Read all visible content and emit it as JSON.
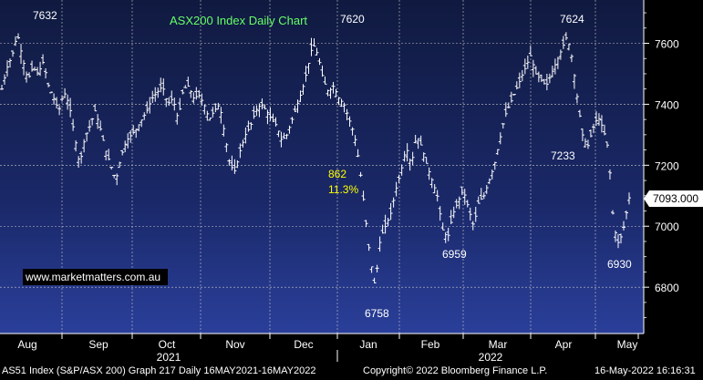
{
  "chart_data": {
    "type": "ohlc",
    "title": "ASX200 Index Daily Chart",
    "watermark": "www.marketmatters.com.au",
    "last_price_label": "7093.000",
    "ylim": [
      6660,
      7730
    ],
    "y_ticks": [
      6800,
      7000,
      7200,
      7400,
      7600
    ],
    "x_months": [
      "Aug",
      "Sep",
      "Oct",
      "Nov",
      "Dec",
      "Jan",
      "Feb",
      "Mar",
      "Apr",
      "May"
    ],
    "x_years": [
      "2021",
      "2022"
    ],
    "annotations": [
      {
        "text": "7632",
        "color": "#ffffff"
      },
      {
        "text": "7620",
        "color": "#ffffff"
      },
      {
        "text": "7624",
        "color": "#ffffff"
      },
      {
        "text": "862",
        "color": "#ffff00"
      },
      {
        "text": "11.3%",
        "color": "#ffff00"
      },
      {
        "text": "7233",
        "color": "#ffffff"
      },
      {
        "text": "6959",
        "color": "#ffffff"
      },
      {
        "text": "6930",
        "color": "#ffffff"
      },
      {
        "text": "6758",
        "color": "#ffffff"
      }
    ],
    "key_levels": [
      {
        "label": "7632",
        "value": 7632
      },
      {
        "label": "7620",
        "value": 7620
      },
      {
        "label": "7624",
        "value": 7624
      },
      {
        "label": "7233",
        "value": 7233
      },
      {
        "label": "6959",
        "value": 6959
      },
      {
        "label": "6930",
        "value": 6930
      },
      {
        "label": "6758",
        "value": 6758
      }
    ],
    "close_path": [
      7450,
      7520,
      7560,
      7632,
      7550,
      7480,
      7520,
      7500,
      7540,
      7460,
      7420,
      7380,
      7440,
      7400,
      7300,
      7200,
      7290,
      7330,
      7380,
      7320,
      7250,
      7200,
      7150,
      7230,
      7280,
      7300,
      7320,
      7350,
      7380,
      7420,
      7440,
      7460,
      7400,
      7420,
      7350,
      7450,
      7460,
      7420,
      7430,
      7400,
      7350,
      7380,
      7400,
      7300,
      7200,
      7180,
      7250,
      7300,
      7330,
      7380,
      7400,
      7380,
      7350,
      7330,
      7280,
      7300,
      7350,
      7400,
      7450,
      7520,
      7600,
      7560,
      7480,
      7440,
      7460,
      7420,
      7400,
      7350,
      7300,
      7200,
      7050,
      6900,
      6800,
      6960,
      7000,
      7040,
      7120,
      7180,
      7260,
      7200,
      7300,
      7260,
      7200,
      7150,
      7100,
      6990,
      6960,
      7040,
      7080,
      7120,
      7060,
      7000,
      7080,
      7100,
      7150,
      7200,
      7280,
      7360,
      7400,
      7440,
      7480,
      7520,
      7560,
      7500,
      7480,
      7460,
      7500,
      7540,
      7580,
      7624,
      7550,
      7420,
      7300,
      7260,
      7320,
      7360,
      7320,
      7250,
      7000,
      6940,
      7000,
      7093
    ],
    "footer": {
      "left": "AS51 Index (S&P/ASX 200) Graph 217  Daily 16MAY2021-16MAY2022",
      "center": "Copyright© 2022 Bloomberg Finance L.P.",
      "right": "16-May-2022 16:16:31"
    }
  }
}
